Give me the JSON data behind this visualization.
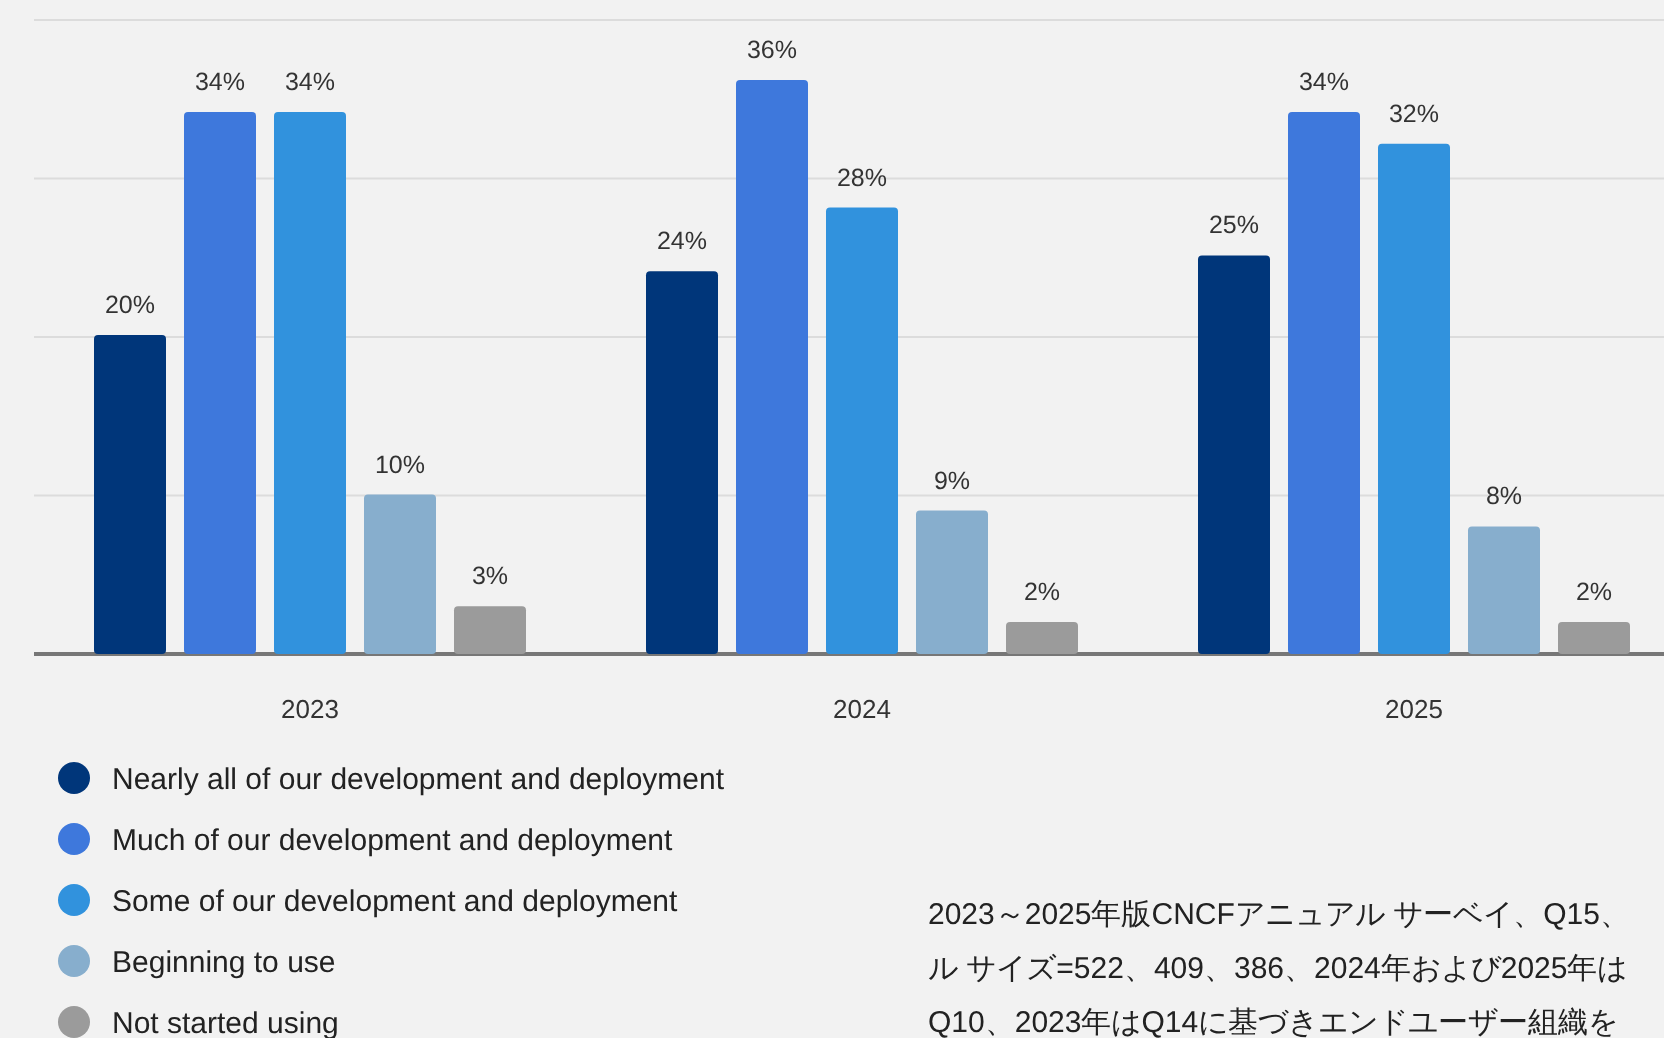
{
  "chart_data": {
    "type": "bar",
    "categories": [
      "2023",
      "2024",
      "2025"
    ],
    "series": [
      {
        "name": "Nearly all of our development and deployment",
        "color": "#00367a",
        "values": [
          20,
          24,
          25
        ],
        "value_labels": [
          "20%",
          "24%",
          "25%"
        ]
      },
      {
        "name": "Much of our development and deployment",
        "color": "#3e78dc",
        "values": [
          34,
          36,
          34
        ],
        "value_labels": [
          "34%",
          "36%",
          "34%"
        ]
      },
      {
        "name": "Some of our development and deployment",
        "color": "#3192dd",
        "values": [
          34,
          28,
          32
        ],
        "value_labels": [
          "34%",
          "28%",
          "32%"
        ]
      },
      {
        "name": "Beginning to use",
        "color": "#87aecd",
        "values": [
          10,
          9,
          8
        ],
        "value_labels": [
          "10%",
          "9%",
          "8%"
        ]
      },
      {
        "name": "Not started using",
        "color": "#9b9b9b",
        "values": [
          3,
          2,
          2
        ],
        "value_labels": [
          "3%",
          "2%",
          "2%"
        ]
      }
    ],
    "tick_labels": "x",
    "grid": "y",
    "legend": "bottom left",
    "annotations": [
      "2023～2025年版CNCFアニュアル サーベイ、Q15、",
      "ル サイズ=522、409、386、2024年および2025年は",
      "Q10、2023年はQ14に基づきエンドユーザー組織を"
    ]
  }
}
